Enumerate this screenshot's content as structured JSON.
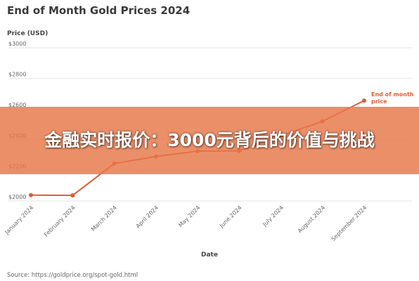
{
  "banner_headline": "金融实时报价：3000元背后的价值与挑战",
  "source_text": "Source: https://goldprice.org/spot-gold.html",
  "chart_data": {
    "type": "line",
    "title": "End of Month Gold Prices 2024",
    "ylabel": "Price (USD)",
    "xlabel": "Date",
    "categories": [
      "January 2024",
      "February 2024",
      "March 2024",
      "April 2024",
      "May 2024",
      "June 2024",
      "July 2024",
      "August 2024",
      "September 2024"
    ],
    "series": [
      {
        "name": "End of month price",
        "values": [
          2038,
          2036,
          2244,
          2290,
          2325,
          2327,
          2425,
          2520,
          2655
        ]
      }
    ],
    "ylim": [
      2000,
      3000
    ],
    "yticks": [
      2000,
      2200,
      2400,
      2600,
      2800,
      3000
    ],
    "ytick_labels": [
      "$2000",
      "$2200",
      "$2400",
      "$2600",
      "$2800",
      "$3000"
    ],
    "grid": true,
    "colors": {
      "line": "#e05a33",
      "grid": "#e6e6e6",
      "axis_text": "#666666"
    },
    "annotation": "End of month price"
  }
}
